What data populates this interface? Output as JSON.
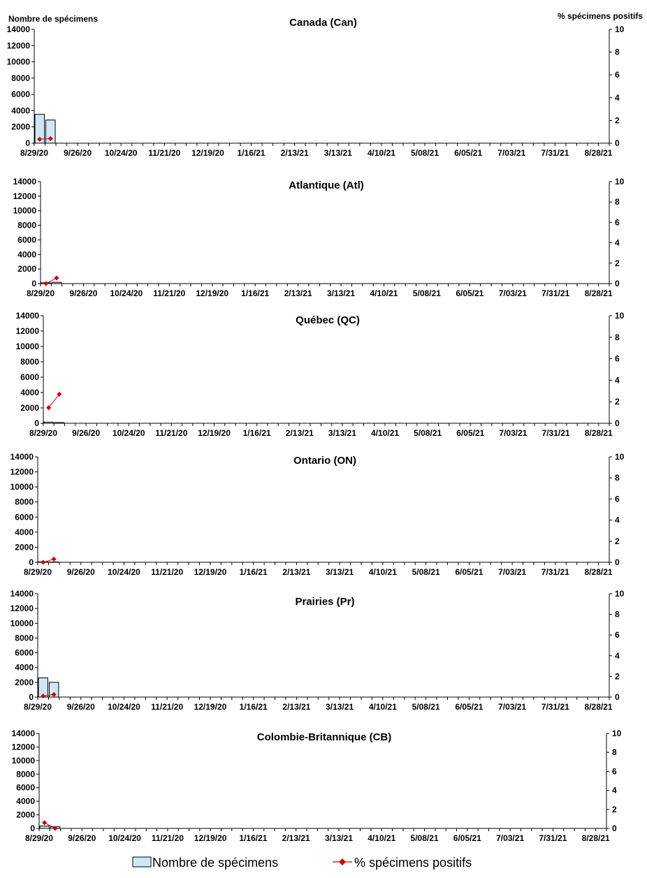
{
  "left_axis_title": "Nombre de spécimens",
  "right_axis_title": "% spécimens positifs",
  "legend": {
    "bars_label": "Nombre de spécimens",
    "line_label": "% spécimens positifs"
  },
  "colors": {
    "bar_fill": "#cfe7f5",
    "bar_stroke": "#000000",
    "line": "#cc0000",
    "axis": "#000000"
  },
  "chart_data": [
    {
      "type": "bar",
      "title": "Canada (Can)",
      "x_tick_labels": [
        "8/29/20",
        "9/26/20",
        "10/24/20",
        "11/21/20",
        "12/19/20",
        "1/16/21",
        "2/13/21",
        "3/13/21",
        "4/10/21",
        "5/08/21",
        "6/05/21",
        "7/03/21",
        "7/31/21",
        "8/28/21"
      ],
      "week_count": 53,
      "ylim": [
        0,
        14000
      ],
      "y_ticks": [
        "0",
        "2000",
        "4000",
        "6000",
        "8000",
        "10000",
        "12000",
        "14000"
      ],
      "y2lim": [
        0,
        10
      ],
      "y2_ticks": [
        "0",
        "2",
        "4",
        "6",
        "8",
        "10"
      ],
      "series": [
        {
          "name": "Nombre de spécimens",
          "type": "bar",
          "values": [
            3550,
            2850
          ]
        },
        {
          "name": "% spécimens positifs",
          "type": "line",
          "axis": "right",
          "values": [
            0.35,
            0.4
          ]
        }
      ]
    },
    {
      "type": "bar",
      "title": "Atlantique (Atl)",
      "x_tick_labels": [
        "8/29/20",
        "9/26/20",
        "10/24/20",
        "11/21/20",
        "12/19/20",
        "1/16/21",
        "2/13/21",
        "3/13/21",
        "4/10/21",
        "5/08/21",
        "6/05/21",
        "7/03/21",
        "7/31/21",
        "8/28/21"
      ],
      "week_count": 53,
      "ylim": [
        0,
        14000
      ],
      "y_ticks": [
        "0",
        "2000",
        "4000",
        "6000",
        "8000",
        "10000",
        "12000",
        "14000"
      ],
      "y2lim": [
        0,
        10
      ],
      "y2_ticks": [
        "0",
        "2",
        "4",
        "6",
        "8",
        "10"
      ],
      "series": [
        {
          "name": "Nombre de spécimens",
          "type": "bar",
          "values": [
            120,
            180
          ]
        },
        {
          "name": "% spécimens positifs",
          "type": "line",
          "axis": "right",
          "values": [
            0.0,
            0.55
          ]
        }
      ]
    },
    {
      "type": "bar",
      "title": "Québec (QC)",
      "x_tick_labels": [
        "8/29/20",
        "9/26/20",
        "10/24/20",
        "11/21/20",
        "12/19/20",
        "1/16/21",
        "2/13/21",
        "3/13/21",
        "4/10/21",
        "5/08/21",
        "6/05/21",
        "7/03/21",
        "7/31/21",
        "8/28/21"
      ],
      "week_count": 53,
      "ylim": [
        0,
        14000
      ],
      "y_ticks": [
        "0",
        "2000",
        "4000",
        "6000",
        "8000",
        "10000",
        "12000",
        "14000"
      ],
      "y2lim": [
        0,
        10
      ],
      "y2_ticks": [
        "0",
        "2",
        "4",
        "6",
        "8",
        "10"
      ],
      "series": [
        {
          "name": "Nombre de spécimens",
          "type": "bar",
          "values": [
            150,
            100
          ]
        },
        {
          "name": "% spécimens positifs",
          "type": "line",
          "axis": "right",
          "values": [
            1.45,
            2.7
          ]
        }
      ]
    },
    {
      "type": "bar",
      "title": "Ontario (ON)",
      "x_tick_labels": [
        "8/29/20",
        "9/26/20",
        "10/24/20",
        "11/21/20",
        "12/19/20",
        "1/16/21",
        "2/13/21",
        "3/13/21",
        "4/10/21",
        "5/08/21",
        "6/05/21",
        "7/03/21",
        "7/31/21",
        "8/28/21"
      ],
      "week_count": 53,
      "ylim": [
        0,
        14000
      ],
      "y_ticks": [
        "0",
        "2000",
        "4000",
        "6000",
        "8000",
        "10000",
        "12000",
        "14000"
      ],
      "y2lim": [
        0,
        10
      ],
      "y2_ticks": [
        "0",
        "2",
        "4",
        "6",
        "8",
        "10"
      ],
      "series": [
        {
          "name": "Nombre de spécimens",
          "type": "bar",
          "values": [
            60,
            40
          ]
        },
        {
          "name": "% spécimens positifs",
          "type": "line",
          "axis": "right",
          "values": [
            0.0,
            0.3
          ]
        }
      ]
    },
    {
      "type": "bar",
      "title": "Prairies (Pr)",
      "x_tick_labels": [
        "8/29/20",
        "9/26/20",
        "10/24/20",
        "11/21/20",
        "12/19/20",
        "1/16/21",
        "2/13/21",
        "3/13/21",
        "4/10/21",
        "5/08/21",
        "6/05/21",
        "7/03/21",
        "7/31/21",
        "8/28/21"
      ],
      "week_count": 53,
      "ylim": [
        0,
        14000
      ],
      "y_ticks": [
        "0",
        "2000",
        "4000",
        "6000",
        "8000",
        "10000",
        "12000",
        "14000"
      ],
      "y2lim": [
        0,
        10
      ],
      "y2_ticks": [
        "0",
        "2",
        "4",
        "6",
        "8",
        "10"
      ],
      "series": [
        {
          "name": "Nombre de spécimens",
          "type": "bar",
          "values": [
            2600,
            2000
          ]
        },
        {
          "name": "% spécimens positifs",
          "type": "line",
          "axis": "right",
          "values": [
            0.1,
            0.25
          ]
        }
      ]
    },
    {
      "type": "bar",
      "title": "Colombie-Britannique (CB)",
      "x_tick_labels": [
        "8/29/20",
        "9/26/20",
        "10/24/20",
        "11/21/20",
        "12/19/20",
        "1/16/21",
        "2/13/21",
        "3/13/21",
        "4/10/21",
        "5/08/21",
        "6/05/21",
        "7/03/21",
        "7/31/21",
        "8/28/21"
      ],
      "week_count": 53,
      "ylim": [
        0,
        14000
      ],
      "y_ticks": [
        "0",
        "2000",
        "4000",
        "6000",
        "8000",
        "10000",
        "12000",
        "14000"
      ],
      "y2lim": [
        0,
        10
      ],
      "y2_ticks": [
        "0",
        "2",
        "4",
        "6",
        "8",
        "10"
      ],
      "series": [
        {
          "name": "Nombre de spécimens",
          "type": "bar",
          "values": [
            350,
            250
          ]
        },
        {
          "name": "% spécimens positifs",
          "type": "line",
          "axis": "right",
          "values": [
            0.6,
            0.0
          ]
        }
      ]
    }
  ]
}
